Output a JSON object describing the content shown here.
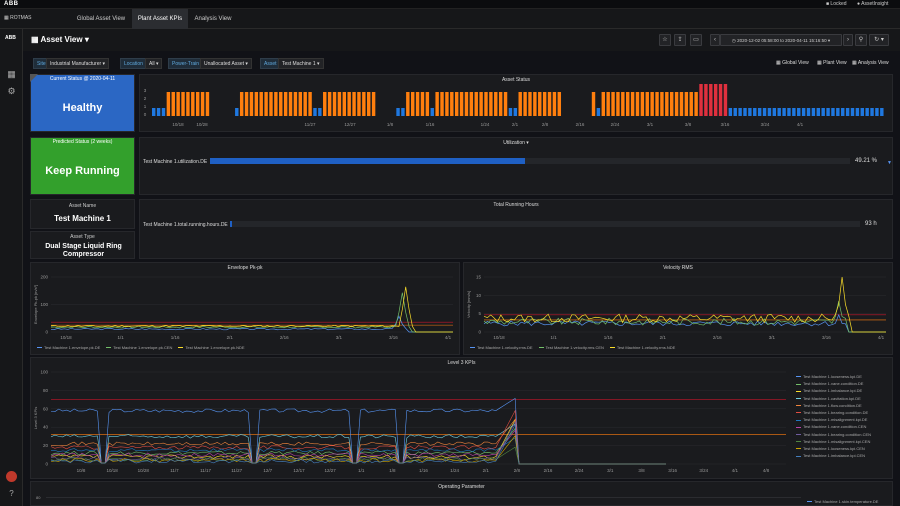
{
  "topbar": {
    "brand": "ABB",
    "lock": "Locked",
    "user": "AssetInsight"
  },
  "nav": {
    "brand": "ROTMAS",
    "tabs": [
      "Global Asset View",
      "Plant Asset KPIs",
      "Analysis View"
    ],
    "active": 1
  },
  "header": {
    "title": "Asset View",
    "time_range": "2020-12-02 05:58:00 to 2020-04-11 15:16:50",
    "views": [
      "Global View",
      "Plant View",
      "Analysis View"
    ]
  },
  "variables": {
    "site_label": "Site",
    "site_value": "Industrial Manufacturer",
    "location_label": "Location",
    "location_value": "All",
    "powertrain_label": "Power-Train",
    "powertrain_value": "Unallocated Asset",
    "asset_label": "Asset",
    "asset_value": "Test Machine 1"
  },
  "current_status": {
    "title": "Current Status @ 2020-04-11",
    "value": "Healthy",
    "color": "#2b67c4"
  },
  "predicted_status": {
    "title": "Predicted Status (2 weeks)",
    "value": "Keep Running",
    "color": "#33a02c"
  },
  "asset_status": {
    "title": "Asset Status",
    "yticks": [
      "3",
      "2",
      "1",
      "0"
    ],
    "xticks": [
      "10/8",
      "10/18",
      "10/28",
      "11/7",
      "11/17",
      "11/27",
      "12/7",
      "12/17",
      "12/27",
      "1/1",
      "1/8",
      "1/16",
      "1/24",
      "2/1",
      "2/8",
      "2/16",
      "2/24",
      "3/1",
      "3/8",
      "3/16",
      "3/24",
      "4/1",
      "4/8"
    ]
  },
  "utilization": {
    "title": "Utilization",
    "series": "Test Machine 1.utilization.DE",
    "value": "49.21 %",
    "fraction": 0.4921
  },
  "running_hours": {
    "title": "Total Running Hours",
    "series": "Test Machine 1.total.running.hours.DE",
    "value": "93 h",
    "fraction": 0.0
  },
  "asset_name": {
    "label": "Asset Name",
    "value": "Test Machine 1"
  },
  "asset_type": {
    "label": "Asset Type",
    "value": "Dual Stage Liquid Ring Compressor"
  },
  "envelope": {
    "title": "Envelope Pk-pk",
    "ylabel": "Envelope Pk-pk [m/s²]",
    "yticks": [
      "200",
      "100",
      "0"
    ],
    "xticks": [
      "10/18",
      "1/1",
      "1/16",
      "2/1",
      "2/16",
      "3/1",
      "3/16",
      "4/1"
    ],
    "legend": [
      {
        "name": "Test Machine 1.envelope.pk.DE",
        "color": "#5794f2"
      },
      {
        "name": "Test Machine 1.envelope.pk.CEN",
        "color": "#73bf69"
      },
      {
        "name": "Test Machine 1.envelope.pk.NDE",
        "color": "#fade2a"
      }
    ]
  },
  "velocity": {
    "title": "Velocity RMS",
    "ylabel": "Velocity [mm/s]",
    "yticks": [
      "15",
      "10",
      "5",
      "0"
    ],
    "xticks": [
      "10/18",
      "1/1",
      "1/16",
      "2/1",
      "2/16",
      "3/1",
      "3/16",
      "4/1"
    ],
    "legend": [
      {
        "name": "Test Machine 1.velocity.rms.DE",
        "color": "#5794f2"
      },
      {
        "name": "Test Machine 1.velocity.rms.CEN",
        "color": "#73bf69"
      },
      {
        "name": "Test Machine 1.velocity.rms.NDE",
        "color": "#fade2a"
      }
    ]
  },
  "level3": {
    "title": "Level 3 KPIs",
    "ylabel": "Level 3 KPIs",
    "yticks": [
      "100",
      "80",
      "60",
      "40",
      "20",
      "0"
    ],
    "xticks": [
      "10/8",
      "10/18",
      "10/28",
      "11/7",
      "11/17",
      "11/27",
      "12/7",
      "12/17",
      "12/27",
      "1/1",
      "1/8",
      "1/16",
      "1/24",
      "2/1",
      "2/8",
      "2/16",
      "2/24",
      "3/1",
      "3/8",
      "3/16",
      "3/24",
      "4/1",
      "4/8"
    ],
    "legend": [
      {
        "name": "Test Machine 1.looseness.kpi.DE",
        "color": "#5794f2"
      },
      {
        "name": "Test Machine 1.vane.condition.DE",
        "color": "#73bf69"
      },
      {
        "name": "Test Machine 1.imbalance.kpi.DE",
        "color": "#fade2a"
      },
      {
        "name": "Test Machine 1.cavitation.kpi.DE",
        "color": "#6ed0e0"
      },
      {
        "name": "Test Machine 1.flow.condition.DE",
        "color": "#ef843c"
      },
      {
        "name": "Test Machine 1.bearing.condition.DE",
        "color": "#e24d42"
      },
      {
        "name": "Test Machine 1.misalignment.kpi.DE",
        "color": "#1f78c1"
      },
      {
        "name": "Test Machine 1.vane.condition.CEN",
        "color": "#ba43a9"
      },
      {
        "name": "Test Machine 1.bearing.condition.CEN",
        "color": "#705da0"
      },
      {
        "name": "Test Machine 1.misalignment.kpi.CEN",
        "color": "#508642"
      },
      {
        "name": "Test Machine 1.looseness.kpi.CEN",
        "color": "#cca300"
      },
      {
        "name": "Test Machine 1.imbalance.kpi.CEN",
        "color": "#447ebc"
      }
    ]
  },
  "operating": {
    "title": "Operating Parameter",
    "ytick": "80",
    "legend": "Test Machine 1.skin.temperature.DE"
  }
}
